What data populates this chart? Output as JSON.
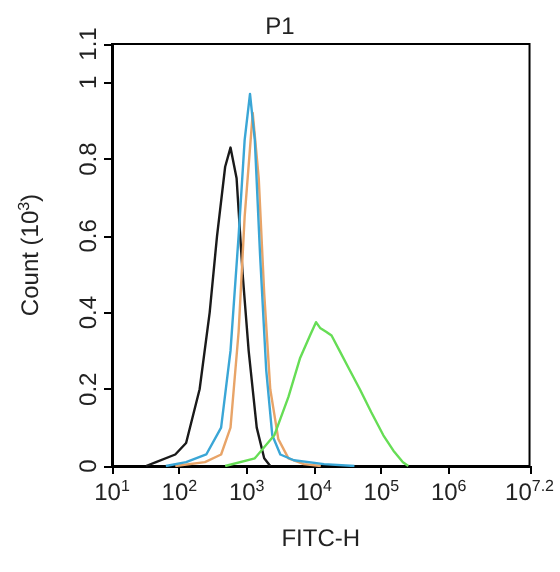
{
  "chart_data": {
    "type": "line",
    "title": "P1",
    "xlabel": "FITC-H",
    "ylabel": "Count (10$^{3}$)",
    "log": "x",
    "grid": false,
    "marker": "none",
    "line_style": "solid",
    "xlim": [
      10,
      15848931.92
    ],
    "xticks": [
      {
        "value": 10,
        "label": "10$^{1}$"
      },
      {
        "value": 100,
        "label": "10$^{2}$"
      },
      {
        "value": 1000,
        "label": "10$^{3}$"
      },
      {
        "value": 10000,
        "label": "10$^{4}$"
      },
      {
        "value": 100000,
        "label": "10$^{5}$"
      },
      {
        "value": 1000000,
        "label": "10$^{6}$"
      },
      {
        "value": 15848931.92,
        "label": "10$^{7.2}$"
      }
    ],
    "ylim": [
      0,
      1.1
    ],
    "yticks": [
      0,
      0.2,
      0.4,
      0.6,
      0.8,
      1,
      1.1
    ],
    "series": [
      {
        "color": "#1a1a1a",
        "x": [
          32,
          45,
          87,
          126,
          200,
          282,
          363,
          479,
          575,
          708,
          871,
          1070,
          1410,
          1820,
          2240
        ],
        "values": [
          0,
          0.01,
          0.03,
          0.06,
          0.2,
          0.4,
          0.6,
          0.78,
          0.83,
          0.75,
          0.5,
          0.3,
          0.1,
          0.02,
          0
        ]
      },
      {
        "color": "#e8a468",
        "x": [
          87,
          240,
          417,
          575,
          759,
          933,
          1230,
          1510,
          1820,
          2240,
          2950,
          4170,
          7080,
          12600
        ],
        "values": [
          0,
          0.01,
          0.03,
          0.1,
          0.35,
          0.65,
          0.92,
          0.75,
          0.45,
          0.2,
          0.07,
          0.02,
          0.005,
          0
        ]
      },
      {
        "color": "#3aa6d6",
        "x": [
          63,
          126,
          251,
          417,
          575,
          759,
          933,
          1120,
          1320,
          1580,
          1950,
          2400,
          3160,
          5010,
          14100,
          39800
        ],
        "values": [
          0,
          0.01,
          0.03,
          0.1,
          0.3,
          0.6,
          0.85,
          0.97,
          0.85,
          0.55,
          0.25,
          0.08,
          0.03,
          0.015,
          0.005,
          0
        ]
      },
      {
        "color": "#66dd55",
        "x": [
          479,
          1320,
          2570,
          4170,
          6170,
          8710,
          10700,
          12300,
          15100,
          18200,
          24000,
          31600,
          47900,
          70800,
          107000,
          151000,
          209000,
          251000
        ],
        "values": [
          0,
          0.02,
          0.08,
          0.18,
          0.28,
          0.34,
          0.375,
          0.36,
          0.35,
          0.34,
          0.3,
          0.26,
          0.2,
          0.14,
          0.08,
          0.04,
          0.01,
          0
        ]
      }
    ]
  }
}
